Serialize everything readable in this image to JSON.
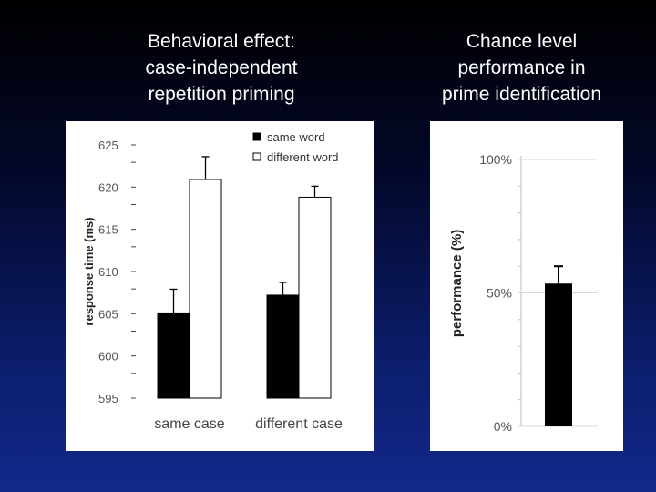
{
  "titles": {
    "left": [
      "Behavioral effect:",
      "case-independent",
      "repetition priming"
    ],
    "right": [
      "Chance level",
      "performance in",
      "prime identification"
    ]
  },
  "colors": {
    "background_top": "#000000",
    "background_bottom": "#12288a",
    "bar_same": "#000000",
    "bar_different": "#ffffff",
    "title_text": "#ffffff",
    "tick_text": "#555555"
  },
  "chart_data": [
    {
      "type": "bar",
      "ylabel": "response time (ms)",
      "xlabel": "",
      "ylim": [
        595,
        625
      ],
      "yticks": [
        625,
        620,
        615,
        610,
        605,
        600,
        595
      ],
      "categories": [
        "same case",
        "different case"
      ],
      "series": [
        {
          "name": "same word",
          "values": [
            605.1,
            607.2
          ],
          "errors": [
            2.8,
            1.5
          ]
        },
        {
          "name": "different word",
          "values": [
            620.9,
            618.8
          ],
          "errors": [
            2.7,
            1.3
          ]
        }
      ],
      "legend": [
        "same word",
        "different word"
      ],
      "legend_position": "top-right"
    },
    {
      "type": "bar",
      "ylabel": "performance (%)",
      "xlabel": "",
      "ylim": [
        0,
        100
      ],
      "yticks": [
        "100%",
        "50%",
        "0%"
      ],
      "categories": [
        ""
      ],
      "series": [
        {
          "name": "prime identification",
          "values": [
            53.5
          ],
          "errors": [
            6.5
          ]
        }
      ]
    }
  ]
}
